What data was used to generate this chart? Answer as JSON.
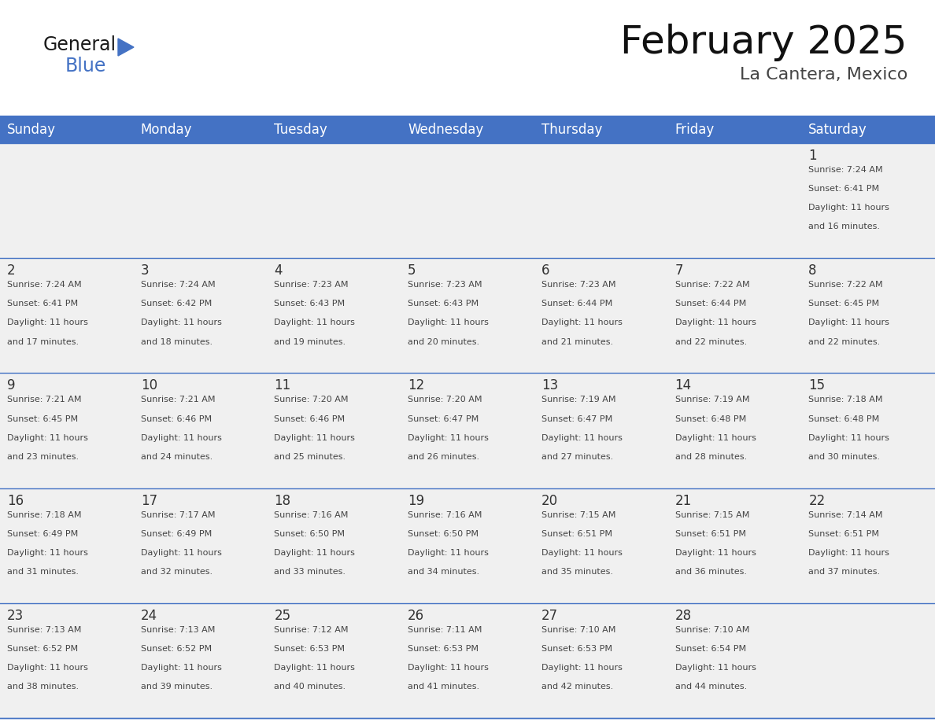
{
  "title": "February 2025",
  "subtitle": "La Cantera, Mexico",
  "days_of_week": [
    "Sunday",
    "Monday",
    "Tuesday",
    "Wednesday",
    "Thursday",
    "Friday",
    "Saturday"
  ],
  "header_bg": "#4472C4",
  "header_text_color": "#FFFFFF",
  "cell_bg_light": "#F0F0F0",
  "border_color": "#4472C4",
  "text_color": "#333333",
  "day_number_color": "#333333",
  "background": "#FFFFFF",
  "calendar_data": [
    [
      null,
      null,
      null,
      null,
      null,
      null,
      {
        "day": 1,
        "sunrise": "7:24 AM",
        "sunset": "6:41 PM",
        "daylight": "11 hours and 16 minutes."
      }
    ],
    [
      {
        "day": 2,
        "sunrise": "7:24 AM",
        "sunset": "6:41 PM",
        "daylight": "11 hours and 17 minutes."
      },
      {
        "day": 3,
        "sunrise": "7:24 AM",
        "sunset": "6:42 PM",
        "daylight": "11 hours and 18 minutes."
      },
      {
        "day": 4,
        "sunrise": "7:23 AM",
        "sunset": "6:43 PM",
        "daylight": "11 hours and 19 minutes."
      },
      {
        "day": 5,
        "sunrise": "7:23 AM",
        "sunset": "6:43 PM",
        "daylight": "11 hours and 20 minutes."
      },
      {
        "day": 6,
        "sunrise": "7:23 AM",
        "sunset": "6:44 PM",
        "daylight": "11 hours and 21 minutes."
      },
      {
        "day": 7,
        "sunrise": "7:22 AM",
        "sunset": "6:44 PM",
        "daylight": "11 hours and 22 minutes."
      },
      {
        "day": 8,
        "sunrise": "7:22 AM",
        "sunset": "6:45 PM",
        "daylight": "11 hours and 22 minutes."
      }
    ],
    [
      {
        "day": 9,
        "sunrise": "7:21 AM",
        "sunset": "6:45 PM",
        "daylight": "11 hours and 23 minutes."
      },
      {
        "day": 10,
        "sunrise": "7:21 AM",
        "sunset": "6:46 PM",
        "daylight": "11 hours and 24 minutes."
      },
      {
        "day": 11,
        "sunrise": "7:20 AM",
        "sunset": "6:46 PM",
        "daylight": "11 hours and 25 minutes."
      },
      {
        "day": 12,
        "sunrise": "7:20 AM",
        "sunset": "6:47 PM",
        "daylight": "11 hours and 26 minutes."
      },
      {
        "day": 13,
        "sunrise": "7:19 AM",
        "sunset": "6:47 PM",
        "daylight": "11 hours and 27 minutes."
      },
      {
        "day": 14,
        "sunrise": "7:19 AM",
        "sunset": "6:48 PM",
        "daylight": "11 hours and 28 minutes."
      },
      {
        "day": 15,
        "sunrise": "7:18 AM",
        "sunset": "6:48 PM",
        "daylight": "11 hours and 30 minutes."
      }
    ],
    [
      {
        "day": 16,
        "sunrise": "7:18 AM",
        "sunset": "6:49 PM",
        "daylight": "11 hours and 31 minutes."
      },
      {
        "day": 17,
        "sunrise": "7:17 AM",
        "sunset": "6:49 PM",
        "daylight": "11 hours and 32 minutes."
      },
      {
        "day": 18,
        "sunrise": "7:16 AM",
        "sunset": "6:50 PM",
        "daylight": "11 hours and 33 minutes."
      },
      {
        "day": 19,
        "sunrise": "7:16 AM",
        "sunset": "6:50 PM",
        "daylight": "11 hours and 34 minutes."
      },
      {
        "day": 20,
        "sunrise": "7:15 AM",
        "sunset": "6:51 PM",
        "daylight": "11 hours and 35 minutes."
      },
      {
        "day": 21,
        "sunrise": "7:15 AM",
        "sunset": "6:51 PM",
        "daylight": "11 hours and 36 minutes."
      },
      {
        "day": 22,
        "sunrise": "7:14 AM",
        "sunset": "6:51 PM",
        "daylight": "11 hours and 37 minutes."
      }
    ],
    [
      {
        "day": 23,
        "sunrise": "7:13 AM",
        "sunset": "6:52 PM",
        "daylight": "11 hours and 38 minutes."
      },
      {
        "day": 24,
        "sunrise": "7:13 AM",
        "sunset": "6:52 PM",
        "daylight": "11 hours and 39 minutes."
      },
      {
        "day": 25,
        "sunrise": "7:12 AM",
        "sunset": "6:53 PM",
        "daylight": "11 hours and 40 minutes."
      },
      {
        "day": 26,
        "sunrise": "7:11 AM",
        "sunset": "6:53 PM",
        "daylight": "11 hours and 41 minutes."
      },
      {
        "day": 27,
        "sunrise": "7:10 AM",
        "sunset": "6:53 PM",
        "daylight": "11 hours and 42 minutes."
      },
      {
        "day": 28,
        "sunrise": "7:10 AM",
        "sunset": "6:54 PM",
        "daylight": "11 hours and 44 minutes."
      },
      null
    ]
  ],
  "logo_text1": "General",
  "logo_text2": "Blue",
  "logo_color1": "#1a1a1a",
  "logo_color2": "#4472C4",
  "logo_triangle_color": "#4472C4",
  "title_fontsize": 36,
  "subtitle_fontsize": 16,
  "header_fontsize": 12,
  "day_num_fontsize": 12,
  "cell_text_fontsize": 8
}
